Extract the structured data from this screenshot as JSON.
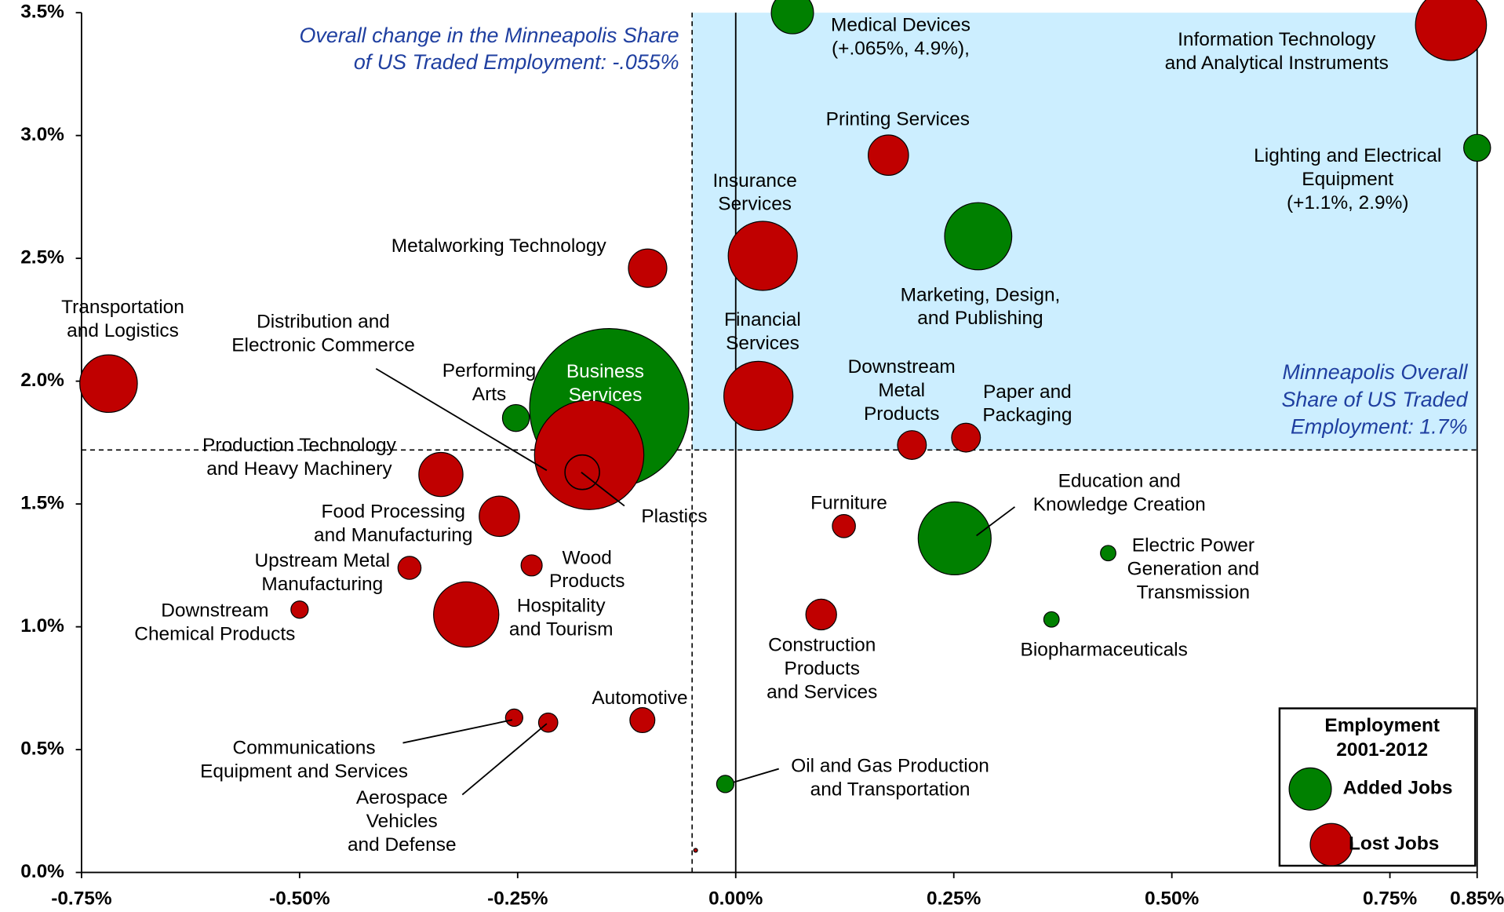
{
  "chart_data": {
    "type": "bubble",
    "xlim": [
      -0.75,
      0.85
    ],
    "ylim": [
      0,
      3.5
    ],
    "xticks": [
      {
        "value": -0.75,
        "label": "-0.75%"
      },
      {
        "value": -0.5,
        "label": "-0.50%"
      },
      {
        "value": -0.25,
        "label": "-0.25%"
      },
      {
        "value": 0,
        "label": "0.00%"
      },
      {
        "value": 0.25,
        "label": "0.25%"
      },
      {
        "value": 0.5,
        "label": "0.50%"
      },
      {
        "value": 0.75,
        "label": "0.75%"
      },
      {
        "value": 0.85,
        "label": "0.85%"
      }
    ],
    "yticks": [
      {
        "value": 0,
        "label": "0.0%"
      },
      {
        "value": 0.5,
        "label": "0.5%"
      },
      {
        "value": 1,
        "label": "1.0%"
      },
      {
        "value": 1.5,
        "label": "1.5%"
      },
      {
        "value": 2,
        "label": "2.0%"
      },
      {
        "value": 2.5,
        "label": "2.5%"
      },
      {
        "value": 3,
        "label": "3.0%"
      },
      {
        "value": 3.5,
        "label": "3.5%"
      }
    ],
    "reference_lines": {
      "x": -0.05,
      "y": 1.72
    },
    "shade_color": "#cceeff",
    "annotations": [
      [
        "Overall change in the Minneapolis Share",
        "of US Traded Employment: -.055%"
      ],
      [
        "Minneapolis Overall",
        "Share of US Traded",
        "Employment: 1.7%"
      ]
    ],
    "legend_title": [
      "Employment",
      "2001-2012"
    ],
    "legend": "bottom-right",
    "series": [
      {
        "name": "Added Jobs",
        "color": "#008000",
        "x": [
          0.065,
          0.85,
          0.278,
          -0.145,
          -0.252,
          0.251,
          0.427,
          0.362,
          -0.012
        ],
        "values": [
          3.5,
          2.95,
          2.59,
          1.89,
          1.85,
          1.36,
          1.3,
          1.03,
          0.36
        ],
        "sizes": [
          484,
          196,
          1225,
          6889,
          196,
          1444,
          64,
          64,
          81
        ],
        "labels": [
          [
            "Medical Devices",
            "(+.065%, 4.9%),"
          ],
          [
            "Lighting and Electrical",
            "Equipment",
            "(+1.1%, 2.9%)"
          ],
          [
            "Marketing, Design,",
            "and Publishing"
          ],
          [
            "Business",
            "Services"
          ],
          [
            "Performing",
            "Arts"
          ],
          [
            "Education and",
            "Knowledge Creation"
          ],
          [
            "Electric Power",
            "Generation and",
            "Transmission"
          ],
          [
            "Biopharmaceuticals"
          ],
          [
            "Oil and Gas Production",
            "and Transportation"
          ]
        ]
      },
      {
        "name": "Lost Jobs",
        "color": "#c00000",
        "x": [
          0.82,
          0.175,
          0.031,
          -0.101,
          -0.719,
          -0.168,
          -0.176,
          0.026,
          0.202,
          0.264,
          -0.338,
          -0.271,
          0.124,
          -0.374,
          -0.234,
          -0.5,
          -0.309,
          0.098,
          -0.107,
          -0.254,
          -0.215,
          -0.046
        ],
        "values": [
          3.45,
          2.92,
          2.51,
          2.46,
          1.99,
          1.7,
          1.63,
          1.94,
          1.74,
          1.77,
          1.62,
          1.45,
          1.41,
          1.24,
          1.25,
          1.07,
          1.05,
          1.05,
          0.62,
          0.63,
          0.61,
          0.09
        ],
        "sizes": [
          1369,
          441,
          1296,
          400,
          900,
          3249,
          324,
          1296,
          225,
          225,
          529,
          441,
          144,
          144,
          121,
          81,
          1156,
          256,
          169,
          81,
          100,
          4
        ],
        "labels": [
          [
            "Information Technology",
            "and Analytical Instruments"
          ],
          [
            "Printing Services"
          ],
          [
            "Insurance",
            "Services"
          ],
          [
            "Metalworking Technology"
          ],
          [
            "Transportation",
            "and Logistics"
          ],
          [
            "Distribution and",
            "Electronic Commerce"
          ],
          [
            "Plastics"
          ],
          [
            "Financial",
            "Services"
          ],
          [
            "Downstream",
            "Metal",
            "Products"
          ],
          [
            "Paper and",
            "Packaging"
          ],
          [
            "Production Technology",
            "and Heavy Machinery"
          ],
          [
            "Food Processing",
            "and Manufacturing"
          ],
          [
            "Furniture"
          ],
          [
            "Upstream Metal",
            "Manufacturing"
          ],
          [
            "Wood",
            "Products"
          ],
          [
            "Downstream",
            "Chemical Products"
          ],
          [
            "Hospitality",
            "and Tourism"
          ],
          [
            "Construction",
            "Products",
            "and Services"
          ],
          [
            "Automotive"
          ],
          [
            "Communications",
            "Equipment and Services"
          ],
          [
            "Aerospace",
            "Vehicles",
            "and Defense"
          ],
          null
        ]
      }
    ]
  }
}
